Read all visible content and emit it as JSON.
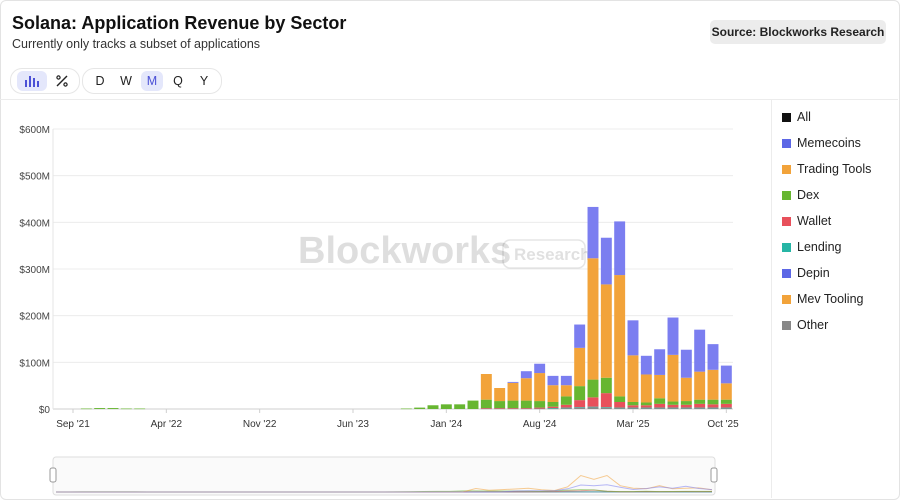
{
  "header": {
    "title": "Solana: Application Revenue by Sector",
    "subtitle": "Currently only tracks a subset of applications",
    "source": "Source: Blockworks Research"
  },
  "toolbar": {
    "chart_modes": [
      {
        "icon": "bar-chart-icon",
        "active": true
      },
      {
        "icon": "percent-icon",
        "active": false
      }
    ],
    "timeframes": [
      {
        "label": "D",
        "active": false
      },
      {
        "label": "W",
        "active": false
      },
      {
        "label": "M",
        "active": true
      },
      {
        "label": "Q",
        "active": false
      },
      {
        "label": "Y",
        "active": false
      }
    ]
  },
  "watermark": {
    "brand": "Blockworks",
    "tag": "Research"
  },
  "chart_data": {
    "type": "bar",
    "stacked": true,
    "y_axis": {
      "min": 0,
      "max": 600,
      "ticks": [
        0,
        100,
        200,
        300,
        400,
        500,
        600
      ],
      "tick_labels": [
        "$0",
        "$100M",
        "$200M",
        "$300M",
        "$400M",
        "$500M",
        "$600M"
      ]
    },
    "x_axis": {
      "labels": [
        "Sep '21",
        "Apr '22",
        "Nov '22",
        "Jun '23",
        "Jan '24",
        "Aug '24",
        "Mar '25",
        "Oct '25"
      ]
    },
    "months": [
      "2021-08",
      "2021-09",
      "2021-10",
      "2021-11",
      "2021-12",
      "2022-01",
      "2022-02",
      "2022-03",
      "2022-04",
      "2022-05",
      "2022-06",
      "2022-07",
      "2022-08",
      "2022-09",
      "2022-10",
      "2022-11",
      "2022-12",
      "2023-01",
      "2023-02",
      "2023-03",
      "2023-04",
      "2023-05",
      "2023-06",
      "2023-07",
      "2023-08",
      "2023-09",
      "2023-10",
      "2023-11",
      "2023-12",
      "2024-01",
      "2024-02",
      "2024-03",
      "2024-04",
      "2024-05",
      "2024-06",
      "2024-07",
      "2024-08",
      "2024-09",
      "2024-10",
      "2024-11",
      "2024-12",
      "2025-01",
      "2025-02",
      "2025-03",
      "2025-04",
      "2025-05",
      "2025-06",
      "2025-07",
      "2025-08",
      "2025-09",
      "2025-10"
    ],
    "series": [
      {
        "name": "Other",
        "color": "#888888",
        "values": [
          0,
          0,
          0,
          0,
          0,
          0,
          0,
          0,
          0,
          0,
          0,
          0,
          0,
          0,
          0,
          0,
          0,
          0,
          0,
          0,
          0,
          0,
          0,
          0,
          0,
          0,
          0,
          0,
          0,
          0,
          0,
          0,
          1,
          1,
          1,
          1,
          1,
          1,
          2,
          3,
          4,
          3,
          2,
          2,
          2,
          2,
          2,
          2,
          2,
          2,
          2
        ]
      },
      {
        "name": "Mev Tooling",
        "color": "#f2a33a",
        "values": [
          0,
          0,
          0,
          0,
          0,
          0,
          0,
          0,
          0,
          0,
          0,
          0,
          0,
          0,
          0,
          0,
          0,
          0,
          0,
          0,
          0,
          0,
          0,
          0,
          0,
          0,
          0,
          0,
          0,
          0,
          0,
          0,
          0,
          0,
          0,
          0,
          0,
          0,
          0,
          0,
          0,
          0,
          0,
          0,
          0,
          0,
          0,
          0,
          0,
          0,
          0
        ]
      },
      {
        "name": "Depin",
        "color": "#5c67e6",
        "values": [
          0,
          0,
          0,
          0,
          0,
          0,
          0,
          0,
          0,
          0,
          0,
          0,
          0,
          0,
          0,
          0,
          0,
          0,
          0,
          0,
          0,
          0,
          0,
          0,
          0,
          0,
          0,
          0,
          0,
          0,
          0,
          0,
          0,
          0,
          0,
          0,
          0,
          0,
          0,
          0,
          0,
          0,
          0,
          0,
          0,
          0,
          0,
          0,
          0,
          0,
          0
        ]
      },
      {
        "name": "Lending",
        "color": "#26b5a5",
        "values": [
          0,
          0,
          0,
          0,
          0,
          0,
          0,
          0,
          0,
          0,
          0,
          0,
          0,
          0,
          0,
          0,
          0,
          0,
          0,
          0,
          0,
          0,
          0,
          0,
          0,
          0,
          0,
          0,
          0,
          0,
          0,
          0,
          0,
          0,
          0,
          0,
          0,
          1,
          1,
          1,
          1,
          1,
          1,
          1,
          1,
          1,
          1,
          1,
          1,
          1,
          1
        ]
      },
      {
        "name": "Wallet",
        "color": "#e8505b",
        "values": [
          0,
          0,
          0,
          0,
          0,
          0,
          0,
          0,
          0,
          0,
          0,
          0,
          0,
          0,
          0,
          0,
          0,
          0,
          0,
          0,
          0,
          0,
          0,
          0,
          0,
          0,
          0,
          0,
          0,
          0,
          0,
          0,
          1,
          1,
          1,
          1,
          2,
          3,
          6,
          15,
          20,
          30,
          12,
          5,
          5,
          8,
          6,
          6,
          8,
          7,
          8
        ]
      },
      {
        "name": "Dex",
        "color": "#67b631",
        "values": [
          0,
          0,
          1,
          2,
          2,
          1,
          1,
          0,
          0,
          0,
          0,
          0,
          0,
          0,
          0,
          0,
          0,
          0,
          0,
          0,
          0,
          0,
          0,
          0,
          0,
          0,
          1,
          3,
          8,
          10,
          10,
          18,
          18,
          15,
          16,
          16,
          14,
          10,
          18,
          30,
          38,
          33,
          12,
          7,
          6,
          12,
          7,
          8,
          9,
          10,
          9
        ]
      },
      {
        "name": "Trading Tools",
        "color": "#f2a33a",
        "values": [
          0,
          0,
          0,
          0,
          0,
          0,
          0,
          0,
          0,
          0,
          0,
          0,
          0,
          0,
          0,
          0,
          0,
          0,
          0,
          0,
          0,
          0,
          0,
          0,
          0,
          0,
          0,
          0,
          0,
          0,
          0,
          0,
          55,
          28,
          38,
          48,
          60,
          36,
          24,
          82,
          260,
          200,
          260,
          100,
          60,
          50,
          100,
          50,
          60,
          64,
          35
        ]
      },
      {
        "name": "Memecoins",
        "color": "#7b7ef0",
        "values": [
          0,
          0,
          0,
          0,
          0,
          0,
          0,
          0,
          0,
          0,
          0,
          0,
          0,
          0,
          0,
          0,
          0,
          0,
          0,
          0,
          0,
          0,
          0,
          0,
          0,
          0,
          0,
          0,
          0,
          0,
          0,
          0,
          0,
          0,
          2,
          15,
          20,
          20,
          20,
          50,
          110,
          100,
          115,
          75,
          40,
          55,
          80,
          60,
          90,
          55,
          38
        ]
      }
    ],
    "legend": {
      "position": "right",
      "entries": [
        {
          "name": "All",
          "color": "#111111"
        },
        {
          "name": "Memecoins",
          "color": "#5c67e6"
        },
        {
          "name": "Trading Tools",
          "color": "#f2a33a"
        },
        {
          "name": "Dex",
          "color": "#67b631"
        },
        {
          "name": "Wallet",
          "color": "#e8505b"
        },
        {
          "name": "Lending",
          "color": "#26b5a5"
        },
        {
          "name": "Depin",
          "color": "#5c67e6"
        },
        {
          "name": "Mev Tooling",
          "color": "#f2a33a"
        },
        {
          "name": "Other",
          "color": "#888888"
        }
      ]
    },
    "grid": true
  }
}
